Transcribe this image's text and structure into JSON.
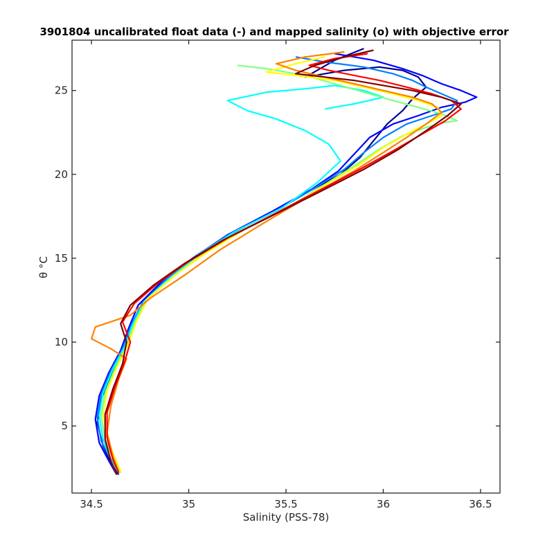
{
  "chart_data": {
    "type": "line",
    "title": "3901804 uncalibrated float data (-) and mapped salinity (o) with objective error",
    "xlabel": "Salinity (PSS-78)",
    "ylabel": "θ °C",
    "xlim": [
      34.4,
      36.6
    ],
    "ylim": [
      1.0,
      28.0
    ],
    "x_ticks": [
      34.5,
      35,
      35.5,
      36,
      36.5
    ],
    "x_tick_labels": [
      "34.5",
      "35",
      "35.5",
      "36",
      "36.5"
    ],
    "y_ticks": [
      5,
      10,
      15,
      20,
      25
    ],
    "y_tick_labels": [
      "5",
      "10",
      "15",
      "20",
      "25"
    ],
    "grid": false,
    "legend": "none",
    "colormap": "jet, blue (early profiles) to dark red (late profiles)",
    "colormap_colors": [
      "#00008f",
      "#0000ff",
      "#0080ff",
      "#00ffff",
      "#80ff80",
      "#ffff00",
      "#ff8000",
      "#ff0000",
      "#800000"
    ],
    "series": [
      {
        "color": "#00008f",
        "x": [
          34.64,
          34.6,
          34.56,
          34.53,
          34.55,
          34.6,
          34.66,
          34.7,
          34.75,
          34.85,
          35.0,
          35.18,
          35.42,
          35.62,
          35.78,
          35.88,
          35.95,
          36.02,
          36.1,
          36.15,
          36.22,
          36.18,
          36.1,
          35.98,
          35.8,
          35.6,
          35.75,
          35.9
        ],
        "y": [
          2.1,
          2.8,
          3.8,
          5.2,
          6.6,
          8.0,
          9.4,
          10.6,
          12.0,
          13.4,
          14.8,
          16.2,
          17.7,
          19.0,
          20.0,
          21.0,
          22.0,
          23.0,
          23.8,
          24.5,
          25.2,
          25.8,
          26.2,
          26.4,
          26.2,
          25.8,
          26.8,
          27.5
        ]
      },
      {
        "color": "#0000ff",
        "x": [
          34.63,
          34.59,
          34.54,
          34.52,
          34.54,
          34.59,
          34.65,
          34.69,
          34.74,
          34.86,
          35.02,
          35.2,
          35.43,
          35.63,
          35.77,
          35.85,
          35.93,
          36.05,
          36.18,
          36.3,
          36.42,
          36.48,
          36.4,
          36.3,
          36.2,
          36.1,
          35.95,
          35.75
        ],
        "y": [
          2.1,
          2.9,
          4.0,
          5.4,
          6.8,
          8.2,
          9.5,
          10.8,
          12.2,
          13.6,
          15.0,
          16.4,
          17.8,
          19.1,
          20.2,
          21.2,
          22.2,
          23.0,
          23.5,
          24.0,
          24.3,
          24.6,
          25.0,
          25.4,
          25.9,
          26.3,
          26.8,
          27.2
        ]
      },
      {
        "color": "#0080ff",
        "x": [
          34.64,
          34.6,
          34.55,
          34.53,
          34.55,
          34.6,
          34.66,
          34.7,
          34.76,
          34.88,
          35.03,
          35.22,
          35.46,
          35.65,
          35.8,
          35.9,
          36.0,
          36.12,
          36.25,
          36.35,
          36.38,
          36.3,
          36.22,
          36.15,
          36.05,
          35.9,
          35.7,
          35.55
        ],
        "y": [
          2.2,
          3.0,
          4.1,
          5.5,
          6.9,
          8.3,
          9.6,
          10.9,
          12.3,
          13.7,
          15.1,
          16.5,
          17.9,
          19.2,
          20.3,
          21.3,
          22.2,
          23.0,
          23.5,
          23.9,
          24.4,
          24.8,
          25.2,
          25.6,
          26.0,
          26.4,
          26.7,
          27.0
        ]
      },
      {
        "color": "#00ffff",
        "x": [
          34.64,
          34.6,
          34.56,
          34.54,
          34.56,
          34.61,
          34.67,
          34.71,
          34.77,
          34.9,
          35.05,
          35.24,
          35.48,
          35.66,
          35.78,
          35.72,
          35.6,
          35.45,
          35.3,
          35.2,
          35.4,
          35.6,
          35.75,
          35.9,
          36.0,
          35.85,
          35.7
        ],
        "y": [
          2.2,
          3.0,
          4.2,
          5.6,
          7.0,
          8.4,
          9.7,
          11.0,
          12.4,
          13.8,
          15.2,
          16.6,
          18.0,
          19.5,
          20.8,
          21.8,
          22.6,
          23.3,
          23.8,
          24.4,
          24.9,
          25.1,
          25.3,
          25.0,
          24.6,
          24.2,
          23.9
        ]
      },
      {
        "color": "#80ff80",
        "x": [
          34.65,
          34.61,
          34.57,
          34.55,
          34.57,
          34.62,
          34.68,
          34.72,
          34.78,
          34.92,
          35.08,
          35.28,
          35.52,
          35.7,
          35.85,
          35.98,
          36.1,
          36.22,
          36.32,
          36.38,
          36.3,
          36.18,
          36.05,
          35.9,
          35.75,
          35.6,
          35.4,
          35.25
        ],
        "y": [
          2.2,
          3.1,
          4.2,
          5.6,
          7.0,
          8.4,
          9.8,
          11.1,
          12.5,
          13.9,
          15.3,
          16.7,
          18.1,
          19.4,
          20.5,
          21.5,
          22.3,
          22.8,
          23.1,
          23.2,
          23.6,
          24.0,
          24.4,
          24.9,
          25.4,
          25.9,
          26.3,
          26.5
        ]
      },
      {
        "color": "#ffff00",
        "x": [
          34.65,
          34.62,
          34.58,
          34.56,
          34.58,
          34.63,
          34.69,
          34.73,
          34.79,
          34.93,
          35.1,
          35.3,
          35.54,
          35.72,
          35.88,
          36.0,
          36.12,
          36.22,
          36.3,
          36.28,
          36.18,
          36.05,
          35.9,
          35.75,
          35.55,
          35.4,
          35.55,
          35.7
        ],
        "y": [
          2.3,
          3.1,
          4.3,
          5.7,
          7.1,
          8.5,
          9.9,
          11.2,
          12.6,
          14.0,
          15.4,
          16.8,
          18.2,
          19.5,
          20.6,
          21.6,
          22.4,
          23.0,
          23.5,
          24.0,
          24.4,
          24.8,
          25.2,
          25.6,
          25.9,
          26.1,
          26.6,
          27.0
        ]
      },
      {
        "color": "#ff8000",
        "x": [
          34.64,
          34.61,
          34.58,
          34.6,
          34.64,
          34.68,
          34.6,
          34.5,
          34.52,
          34.7,
          34.8,
          34.98,
          35.16,
          35.4,
          35.65,
          35.85,
          36.0,
          36.12,
          36.22,
          36.3,
          36.25,
          36.15,
          36.0,
          35.85,
          35.7,
          35.55,
          35.45,
          35.6,
          35.8
        ],
        "y": [
          2.3,
          3.2,
          4.6,
          6.2,
          7.8,
          9.0,
          9.6,
          10.2,
          10.9,
          11.6,
          12.6,
          14.0,
          15.5,
          17.2,
          18.9,
          20.2,
          21.3,
          22.2,
          23.0,
          23.7,
          24.2,
          24.6,
          25.0,
          25.4,
          25.8,
          26.2,
          26.6,
          27.0,
          27.3
        ]
      },
      {
        "color": "#ff0000",
        "x": [
          34.64,
          34.61,
          34.58,
          34.58,
          34.62,
          34.67,
          34.7,
          34.66,
          34.72,
          34.84,
          35.0,
          35.2,
          35.45,
          35.68,
          35.88,
          36.05,
          36.2,
          36.32,
          36.4,
          36.35,
          36.25,
          36.12,
          35.98,
          35.85,
          35.72,
          35.62,
          35.75,
          35.92
        ],
        "y": [
          2.2,
          3.0,
          4.3,
          5.8,
          7.3,
          8.8,
          10.0,
          11.2,
          12.3,
          13.5,
          14.8,
          16.2,
          17.7,
          19.1,
          20.3,
          21.4,
          22.4,
          23.2,
          23.9,
          24.4,
          24.8,
          25.2,
          25.6,
          25.9,
          26.2,
          26.5,
          26.9,
          27.2
        ]
      },
      {
        "color": "#800000",
        "x": [
          34.63,
          34.6,
          34.57,
          34.57,
          34.61,
          34.66,
          34.68,
          34.65,
          34.7,
          34.82,
          34.98,
          35.18,
          35.44,
          35.68,
          35.9,
          36.08,
          36.22,
          36.33,
          36.4,
          36.3,
          36.15,
          36.0,
          35.85,
          35.7,
          35.55,
          35.65,
          35.8,
          35.95
        ],
        "y": [
          2.1,
          2.9,
          4.2,
          5.7,
          7.2,
          8.7,
          10.0,
          11.1,
          12.2,
          13.4,
          14.7,
          16.1,
          17.6,
          19.0,
          20.3,
          21.5,
          22.6,
          23.5,
          24.2,
          24.6,
          25.0,
          25.3,
          25.6,
          25.8,
          26.0,
          26.5,
          27.0,
          27.4
        ]
      }
    ]
  }
}
